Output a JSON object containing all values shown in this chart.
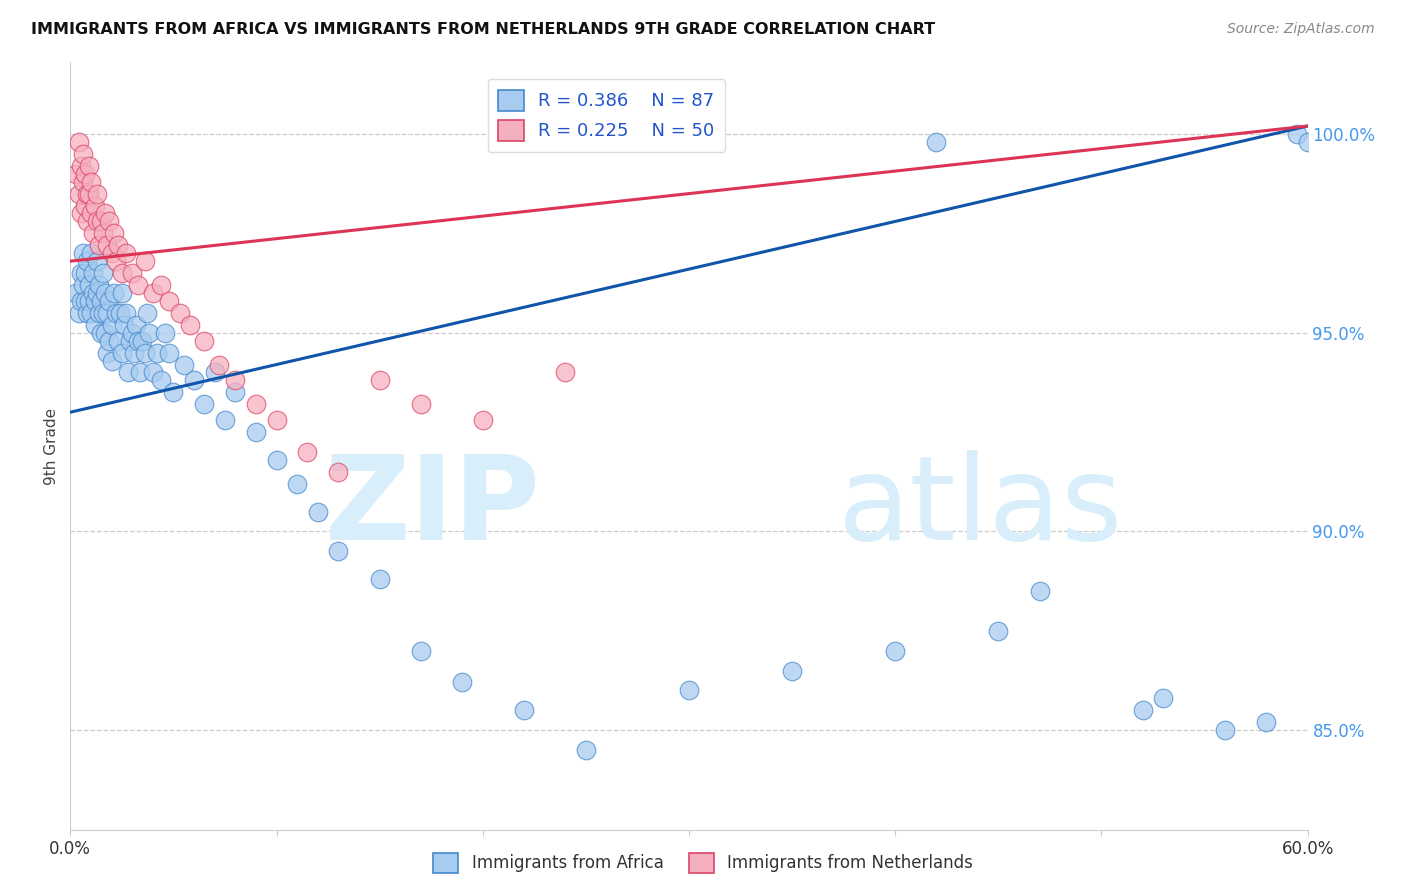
{
  "title": "IMMIGRANTS FROM AFRICA VS IMMIGRANTS FROM NETHERLANDS 9TH GRADE CORRELATION CHART",
  "source": "Source: ZipAtlas.com",
  "ylabel": "9th Grade",
  "yticks": [
    "85.0%",
    "90.0%",
    "95.0%",
    "100.0%"
  ],
  "ytick_vals": [
    0.85,
    0.9,
    0.95,
    1.0
  ],
  "xlim": [
    0.0,
    0.6
  ],
  "ylim": [
    0.825,
    1.018
  ],
  "legend_blue_r": "R = 0.386",
  "legend_blue_n": "N = 87",
  "legend_pink_r": "R = 0.225",
  "legend_pink_n": "N = 50",
  "blue_color": "#A8CCF0",
  "pink_color": "#F5B0C0",
  "blue_edge_color": "#4488CC",
  "pink_edge_color": "#DD4466",
  "blue_line_color": "#1155AA",
  "pink_line_color": "#DD3355",
  "watermark_zip": "ZIP",
  "watermark_atlas": "atlas",
  "watermark_color": "#D8EEFA",
  "blue_line_x0": 0.0,
  "blue_line_x1": 0.6,
  "blue_line_y0": 0.93,
  "blue_line_y1": 1.002,
  "pink_line_x0": 0.0,
  "pink_line_x1": 0.6,
  "pink_line_y0": 0.968,
  "pink_line_y1": 1.002,
  "blue_scatter_x": [
    0.003,
    0.004,
    0.005,
    0.005,
    0.006,
    0.006,
    0.007,
    0.007,
    0.008,
    0.008,
    0.009,
    0.009,
    0.01,
    0.01,
    0.011,
    0.011,
    0.012,
    0.012,
    0.013,
    0.013,
    0.014,
    0.014,
    0.015,
    0.015,
    0.016,
    0.016,
    0.017,
    0.017,
    0.018,
    0.018,
    0.019,
    0.019,
    0.02,
    0.02,
    0.021,
    0.022,
    0.023,
    0.024,
    0.025,
    0.025,
    0.026,
    0.027,
    0.028,
    0.029,
    0.03,
    0.031,
    0.032,
    0.033,
    0.034,
    0.035,
    0.036,
    0.037,
    0.038,
    0.04,
    0.042,
    0.044,
    0.046,
    0.048,
    0.05,
    0.055,
    0.06,
    0.065,
    0.07,
    0.075,
    0.08,
    0.09,
    0.1,
    0.11,
    0.12,
    0.13,
    0.15,
    0.17,
    0.19,
    0.22,
    0.25,
    0.3,
    0.35,
    0.4,
    0.45,
    0.52,
    0.58,
    0.595,
    0.42,
    0.6,
    0.47,
    0.53,
    0.56
  ],
  "blue_scatter_y": [
    0.96,
    0.955,
    0.965,
    0.958,
    0.962,
    0.97,
    0.958,
    0.965,
    0.955,
    0.968,
    0.962,
    0.958,
    0.97,
    0.955,
    0.965,
    0.96,
    0.958,
    0.952,
    0.968,
    0.96,
    0.955,
    0.962,
    0.958,
    0.95,
    0.965,
    0.955,
    0.96,
    0.95,
    0.955,
    0.945,
    0.958,
    0.948,
    0.952,
    0.943,
    0.96,
    0.955,
    0.948,
    0.955,
    0.96,
    0.945,
    0.952,
    0.955,
    0.94,
    0.948,
    0.95,
    0.945,
    0.952,
    0.948,
    0.94,
    0.948,
    0.945,
    0.955,
    0.95,
    0.94,
    0.945,
    0.938,
    0.95,
    0.945,
    0.935,
    0.942,
    0.938,
    0.932,
    0.94,
    0.928,
    0.935,
    0.925,
    0.918,
    0.912,
    0.905,
    0.895,
    0.888,
    0.87,
    0.862,
    0.855,
    0.845,
    0.86,
    0.865,
    0.87,
    0.875,
    0.855,
    0.852,
    1.0,
    0.998,
    0.998,
    0.885,
    0.858,
    0.85
  ],
  "pink_scatter_x": [
    0.003,
    0.004,
    0.004,
    0.005,
    0.005,
    0.006,
    0.006,
    0.007,
    0.007,
    0.008,
    0.008,
    0.009,
    0.009,
    0.01,
    0.01,
    0.011,
    0.012,
    0.013,
    0.013,
    0.014,
    0.015,
    0.016,
    0.017,
    0.018,
    0.019,
    0.02,
    0.021,
    0.022,
    0.023,
    0.025,
    0.027,
    0.03,
    0.033,
    0.036,
    0.04,
    0.044,
    0.048,
    0.053,
    0.058,
    0.065,
    0.072,
    0.08,
    0.09,
    0.1,
    0.115,
    0.13,
    0.15,
    0.17,
    0.2,
    0.24
  ],
  "pink_scatter_y": [
    0.99,
    0.998,
    0.985,
    0.992,
    0.98,
    0.988,
    0.995,
    0.982,
    0.99,
    0.985,
    0.978,
    0.992,
    0.985,
    0.98,
    0.988,
    0.975,
    0.982,
    0.978,
    0.985,
    0.972,
    0.978,
    0.975,
    0.98,
    0.972,
    0.978,
    0.97,
    0.975,
    0.968,
    0.972,
    0.965,
    0.97,
    0.965,
    0.962,
    0.968,
    0.96,
    0.962,
    0.958,
    0.955,
    0.952,
    0.948,
    0.942,
    0.938,
    0.932,
    0.928,
    0.92,
    0.915,
    0.938,
    0.932,
    0.928,
    0.94
  ]
}
